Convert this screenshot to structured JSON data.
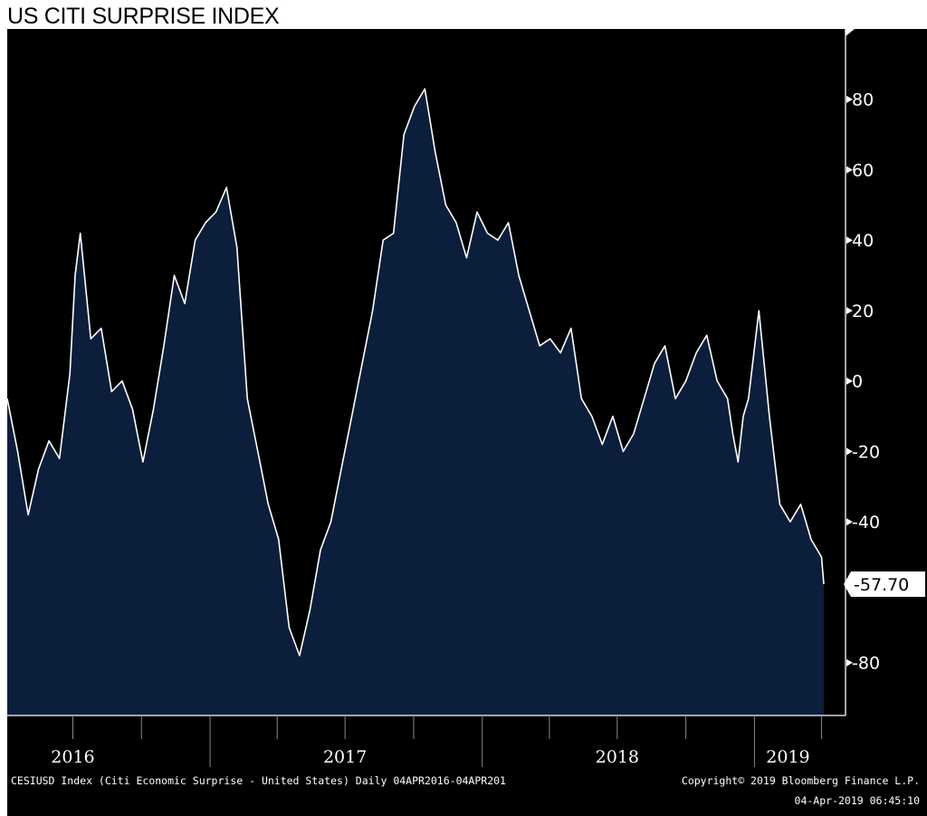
{
  "title": "US CITI SURPRISE INDEX",
  "chart_data": {
    "type": "area",
    "x_range": [
      "2016-04-04",
      "2019-04-04"
    ],
    "ylim": [
      -95,
      100
    ],
    "yticks": [
      -80,
      -40,
      -20,
      0,
      20,
      40,
      60,
      80
    ],
    "year_labels": [
      {
        "label": "2016",
        "date": "2016-07-01"
      },
      {
        "label": "2017",
        "date": "2017-07-01"
      },
      {
        "label": "2018",
        "date": "2018-07-01"
      },
      {
        "label": "2019",
        "date": "2019-02-15"
      }
    ],
    "year_boundaries": [
      "2017-01-01",
      "2018-01-01",
      "2019-01-01"
    ],
    "quarter_ticks": [
      "2016-07-01",
      "2016-10-01",
      "2017-04-01",
      "2017-07-01",
      "2017-10-01",
      "2018-04-01",
      "2018-07-01",
      "2018-10-01",
      "2019-04-01"
    ],
    "x": [
      "2016-04-04",
      "2016-04-18",
      "2016-05-02",
      "2016-05-16",
      "2016-05-30",
      "2016-06-13",
      "2016-06-27",
      "2016-07-04",
      "2016-07-11",
      "2016-07-25",
      "2016-08-08",
      "2016-08-22",
      "2016-09-05",
      "2016-09-19",
      "2016-10-03",
      "2016-10-17",
      "2016-10-31",
      "2016-11-14",
      "2016-11-28",
      "2016-12-12",
      "2016-12-26",
      "2017-01-09",
      "2017-01-23",
      "2017-02-06",
      "2017-02-20",
      "2017-03-06",
      "2017-03-20",
      "2017-04-03",
      "2017-04-17",
      "2017-05-01",
      "2017-05-15",
      "2017-05-29",
      "2017-06-12",
      "2017-06-26",
      "2017-07-10",
      "2017-07-24",
      "2017-08-07",
      "2017-08-21",
      "2017-09-04",
      "2017-09-18",
      "2017-10-02",
      "2017-10-16",
      "2017-10-30",
      "2017-11-13",
      "2017-11-27",
      "2017-12-11",
      "2017-12-25",
      "2018-01-08",
      "2018-01-22",
      "2018-02-05",
      "2018-02-19",
      "2018-03-05",
      "2018-03-19",
      "2018-04-02",
      "2018-04-16",
      "2018-04-30",
      "2018-05-14",
      "2018-05-28",
      "2018-06-11",
      "2018-06-25",
      "2018-07-09",
      "2018-07-23",
      "2018-08-06",
      "2018-08-20",
      "2018-09-03",
      "2018-09-17",
      "2018-10-01",
      "2018-10-15",
      "2018-10-29",
      "2018-11-12",
      "2018-11-26",
      "2018-12-03",
      "2018-12-10",
      "2018-12-17",
      "2018-12-24",
      "2019-01-07",
      "2019-01-21",
      "2019-02-04",
      "2019-02-18",
      "2019-03-04",
      "2019-03-18",
      "2019-04-01",
      "2019-04-04"
    ],
    "series": [
      {
        "values": [
          -5,
          -20,
          -38,
          -25,
          -17,
          -22,
          2,
          30,
          42,
          12,
          15,
          -3,
          0,
          -8,
          -23,
          -8,
          10,
          30,
          22,
          40,
          45,
          48,
          55,
          38,
          -5,
          -20,
          -35,
          -45,
          -70,
          -78,
          -65,
          -48,
          -40,
          -25,
          -10,
          5,
          20,
          40,
          42,
          70,
          78,
          83,
          65,
          50,
          45,
          35,
          48,
          42,
          40,
          45,
          30,
          20,
          10,
          12,
          8,
          15,
          -5,
          -10,
          -18,
          -10,
          -20,
          -15,
          -5,
          5,
          10,
          -5,
          0,
          8,
          13,
          0,
          -5,
          -15,
          -23,
          -10,
          -5,
          20,
          -10,
          -35,
          -40,
          -35,
          -45,
          -50,
          -57.7
        ]
      }
    ],
    "last_value_label": "-57.70"
  },
  "footer": {
    "left": "CESIUSD Index (Citi Economic Surprise - United States)  Daily 04APR2016-04APR201",
    "right_line1": "Copyright© 2019 Bloomberg Finance L.P.",
    "right_line2": "04-Apr-2019 06:45:10"
  },
  "colors": {
    "background": "#000000",
    "area_fill": "#0b1e3c",
    "line": "#ffffff",
    "axis": "#ffffff",
    "title_text": "#000000"
  }
}
